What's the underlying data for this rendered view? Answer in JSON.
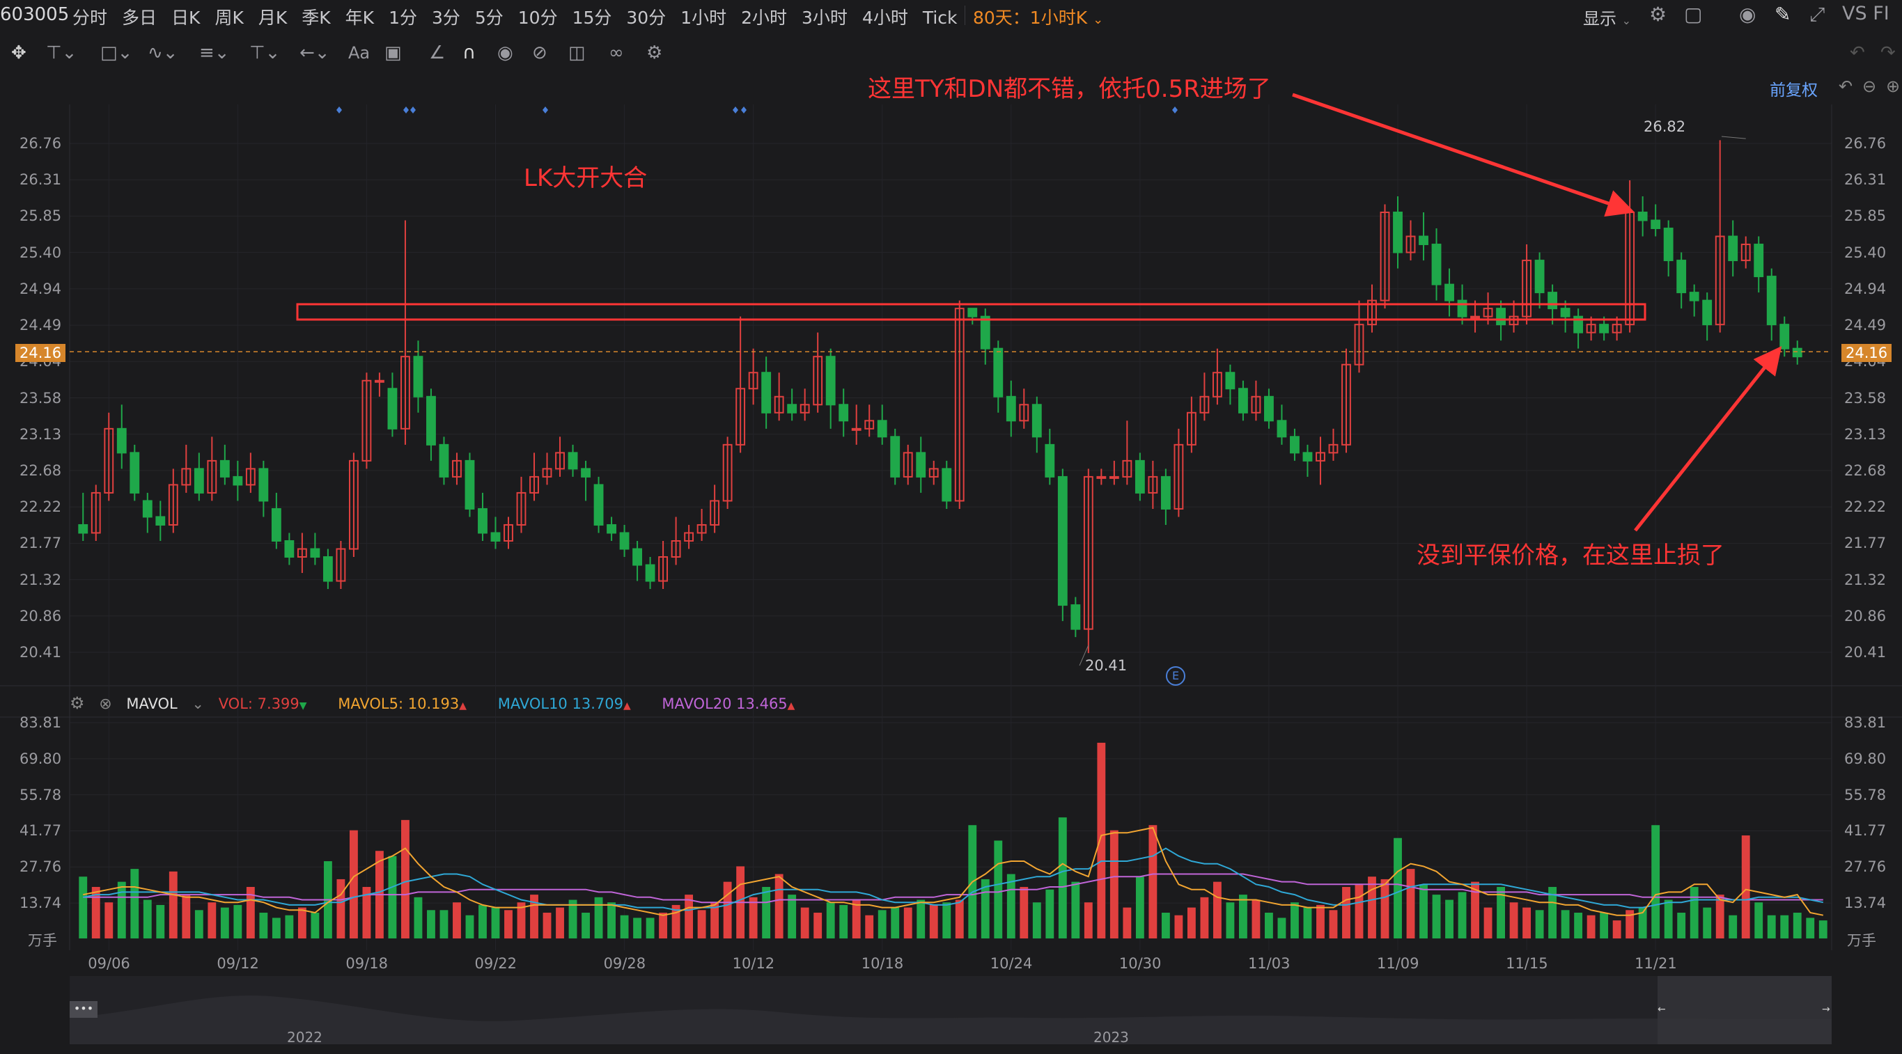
{
  "toolbar": {
    "symbol": "603005",
    "periods": [
      "分时",
      "多日",
      "日K",
      "周K",
      "月K",
      "季K",
      "年K",
      "1分",
      "3分",
      "5分",
      "10分",
      "15分",
      "30分",
      "1小时",
      "2小时",
      "3小时",
      "4小时",
      "Tick"
    ],
    "active_period": "80天：1小时K",
    "display_label": "显示",
    "right_text": "VS FI",
    "icons": [
      "settings-icon",
      "layout-icon",
      "camera-icon",
      "pencil-icon",
      "expand-icon"
    ]
  },
  "drawing_tools": [
    "crosshair-icon",
    "line-tool-icon",
    "shape-tool-icon",
    "path-tool-icon",
    "fib-tool-icon",
    "vertical-line-icon",
    "arrow-tool-icon",
    "text-tool-icon",
    "note-tool-icon",
    "ruler-icon",
    "magnet-icon",
    "eye-icon",
    "hide-icon",
    "trash-icon",
    "link-icon",
    "gear-icon"
  ],
  "adjust_label": "前复权",
  "price_axis": {
    "ticks": [
      "26.76",
      "26.31",
      "25.85",
      "25.40",
      "24.94",
      "24.49",
      "24.04",
      "23.58",
      "23.13",
      "22.68",
      "22.22",
      "21.77",
      "21.32",
      "20.86",
      "20.41"
    ],
    "current_price": "24.16",
    "high_label": "26.82",
    "low_label": "20.41"
  },
  "volume_legend": {
    "name": "MAVOL",
    "vol": "VOL: 7.399",
    "mavol5": "MAVOL5: 10.193",
    "mavol10": "MAVOL10  13.709",
    "mavol20": "MAVOL20  13.465"
  },
  "volume_axis": {
    "ticks": [
      "83.81",
      "69.80",
      "55.78",
      "41.77",
      "27.76",
      "13.74"
    ],
    "unit": "万手"
  },
  "date_axis": [
    "09/06",
    "09/12",
    "09/18",
    "09/22",
    "09/28",
    "10/12",
    "10/18",
    "10/24",
    "10/30",
    "11/03",
    "11/09",
    "11/15",
    "11/21"
  ],
  "navigator": {
    "years": [
      "2022",
      "2023"
    ]
  },
  "event_marker": "E",
  "annotations": {
    "top": "这里TY和DN都不错，依托0.5R进场了",
    "left": "LK大开大合",
    "bottom": "没到平保价格，在这里止损了"
  },
  "colors": {
    "up": "#e0403f",
    "down": "#1fa84a",
    "mavol5": "#f2a531",
    "mavol10": "#2fa8d6",
    "mavol20": "#c065d8",
    "annotation": "#ff3535",
    "current_price": "#d6862b"
  },
  "chart_data": {
    "type": "candlestick",
    "ylim": [
      20.2,
      27.0
    ],
    "bars": [
      [
        22.0,
        21.9,
        22.4,
        21.8
      ],
      [
        21.9,
        22.4,
        22.5,
        21.8
      ],
      [
        22.4,
        23.2,
        23.4,
        22.3
      ],
      [
        23.2,
        22.9,
        23.5,
        22.7
      ],
      [
        22.9,
        22.4,
        23.0,
        22.3
      ],
      [
        22.3,
        22.1,
        22.4,
        21.9
      ],
      [
        22.1,
        22.0,
        22.3,
        21.8
      ],
      [
        22.0,
        22.5,
        22.7,
        21.9
      ],
      [
        22.5,
        22.7,
        23.0,
        22.4
      ],
      [
        22.7,
        22.4,
        22.9,
        22.3
      ],
      [
        22.4,
        22.8,
        23.1,
        22.3
      ],
      [
        22.8,
        22.6,
        23.0,
        22.5
      ],
      [
        22.6,
        22.5,
        22.8,
        22.3
      ],
      [
        22.5,
        22.7,
        22.9,
        22.4
      ],
      [
        22.7,
        22.3,
        22.8,
        22.1
      ],
      [
        22.2,
        21.8,
        22.4,
        21.7
      ],
      [
        21.8,
        21.6,
        21.9,
        21.5
      ],
      [
        21.6,
        21.7,
        21.9,
        21.4
      ],
      [
        21.7,
        21.6,
        21.9,
        21.5
      ],
      [
        21.6,
        21.3,
        21.7,
        21.2
      ],
      [
        21.3,
        21.7,
        21.8,
        21.2
      ],
      [
        21.7,
        22.8,
        22.9,
        21.6
      ],
      [
        22.8,
        23.8,
        23.9,
        22.7
      ],
      [
        23.8,
        23.8,
        23.9,
        23.6
      ],
      [
        23.7,
        23.2,
        23.9,
        23.1
      ],
      [
        23.2,
        24.1,
        25.8,
        23.0
      ],
      [
        24.1,
        23.6,
        24.3,
        23.4
      ],
      [
        23.6,
        23.0,
        23.7,
        22.8
      ],
      [
        23.0,
        22.6,
        23.1,
        22.5
      ],
      [
        22.6,
        22.8,
        22.9,
        22.5
      ],
      [
        22.8,
        22.2,
        22.9,
        22.1
      ],
      [
        22.2,
        21.9,
        22.4,
        21.8
      ],
      [
        21.9,
        21.8,
        22.1,
        21.7
      ],
      [
        21.8,
        22.0,
        22.1,
        21.7
      ],
      [
        22.0,
        22.4,
        22.6,
        21.9
      ],
      [
        22.4,
        22.6,
        22.9,
        22.3
      ],
      [
        22.6,
        22.7,
        22.9,
        22.5
      ],
      [
        22.7,
        22.9,
        23.1,
        22.6
      ],
      [
        22.9,
        22.7,
        23.0,
        22.6
      ],
      [
        22.7,
        22.6,
        22.8,
        22.3
      ],
      [
        22.5,
        22.0,
        22.6,
        21.9
      ],
      [
        22.0,
        21.9,
        22.1,
        21.8
      ],
      [
        21.9,
        21.7,
        22.0,
        21.6
      ],
      [
        21.7,
        21.5,
        21.8,
        21.3
      ],
      [
        21.5,
        21.3,
        21.6,
        21.2
      ],
      [
        21.3,
        21.6,
        21.8,
        21.2
      ],
      [
        21.6,
        21.8,
        22.1,
        21.5
      ],
      [
        21.8,
        21.9,
        22.0,
        21.7
      ],
      [
        21.9,
        22.0,
        22.2,
        21.8
      ],
      [
        22.0,
        22.3,
        22.5,
        21.9
      ],
      [
        22.3,
        23.0,
        23.1,
        22.2
      ],
      [
        23.0,
        23.7,
        24.6,
        22.9
      ],
      [
        23.7,
        23.9,
        24.2,
        23.5
      ],
      [
        23.9,
        23.4,
        24.1,
        23.2
      ],
      [
        23.4,
        23.6,
        23.9,
        23.3
      ],
      [
        23.5,
        23.4,
        23.7,
        23.3
      ],
      [
        23.4,
        23.5,
        23.7,
        23.3
      ],
      [
        23.5,
        24.1,
        24.4,
        23.4
      ],
      [
        24.1,
        23.5,
        24.2,
        23.2
      ],
      [
        23.5,
        23.3,
        23.7,
        23.1
      ],
      [
        23.2,
        23.2,
        23.5,
        23.0
      ],
      [
        23.2,
        23.3,
        23.5,
        23.1
      ],
      [
        23.3,
        23.1,
        23.5,
        23.0
      ],
      [
        23.1,
        22.6,
        23.2,
        22.5
      ],
      [
        22.6,
        22.9,
        23.0,
        22.5
      ],
      [
        22.9,
        22.6,
        23.1,
        22.4
      ],
      [
        22.6,
        22.7,
        22.8,
        22.5
      ],
      [
        22.7,
        22.3,
        22.8,
        22.2
      ],
      [
        22.3,
        24.7,
        24.8,
        22.2
      ],
      [
        24.7,
        24.6,
        24.7,
        24.5
      ],
      [
        24.6,
        24.2,
        24.7,
        24.0
      ],
      [
        24.2,
        23.6,
        24.3,
        23.4
      ],
      [
        23.6,
        23.3,
        23.8,
        23.1
      ],
      [
        23.3,
        23.5,
        23.7,
        23.2
      ],
      [
        23.5,
        23.1,
        23.6,
        22.9
      ],
      [
        23.0,
        22.6,
        23.2,
        22.5
      ],
      [
        22.6,
        21.0,
        22.7,
        20.8
      ],
      [
        21.0,
        20.7,
        21.1,
        20.6
      ],
      [
        20.7,
        22.6,
        22.7,
        20.4
      ],
      [
        22.6,
        22.6,
        22.7,
        22.5
      ],
      [
        22.6,
        22.6,
        22.8,
        22.5
      ],
      [
        22.6,
        22.8,
        23.3,
        22.5
      ],
      [
        22.8,
        22.4,
        22.9,
        22.3
      ],
      [
        22.4,
        22.6,
        22.8,
        22.2
      ],
      [
        22.6,
        22.2,
        22.7,
        22.0
      ],
      [
        22.2,
        23.0,
        23.2,
        22.1
      ],
      [
        23.0,
        23.4,
        23.6,
        22.9
      ],
      [
        23.4,
        23.6,
        23.9,
        23.3
      ],
      [
        23.6,
        23.9,
        24.2,
        23.5
      ],
      [
        23.9,
        23.7,
        24.0,
        23.5
      ],
      [
        23.7,
        23.4,
        23.8,
        23.3
      ],
      [
        23.4,
        23.6,
        23.8,
        23.3
      ],
      [
        23.6,
        23.3,
        23.7,
        23.2
      ],
      [
        23.3,
        23.1,
        23.5,
        23.0
      ],
      [
        23.1,
        22.9,
        23.2,
        22.8
      ],
      [
        22.9,
        22.8,
        23.0,
        22.6
      ],
      [
        22.8,
        22.9,
        23.1,
        22.5
      ],
      [
        22.9,
        23.0,
        23.2,
        22.8
      ],
      [
        23.0,
        24.0,
        24.2,
        22.9
      ],
      [
        24.0,
        24.5,
        24.8,
        23.9
      ],
      [
        24.5,
        24.8,
        25.0,
        24.4
      ],
      [
        24.8,
        25.9,
        26.0,
        24.7
      ],
      [
        25.9,
        25.4,
        26.1,
        25.2
      ],
      [
        25.4,
        25.6,
        25.8,
        25.3
      ],
      [
        25.6,
        25.5,
        25.9,
        25.3
      ],
      [
        25.5,
        25.0,
        25.7,
        24.8
      ],
      [
        25.0,
        24.8,
        25.2,
        24.6
      ],
      [
        24.8,
        24.6,
        25.0,
        24.5
      ],
      [
        24.6,
        24.6,
        24.8,
        24.4
      ],
      [
        24.6,
        24.7,
        24.9,
        24.5
      ],
      [
        24.7,
        24.5,
        24.8,
        24.3
      ],
      [
        24.5,
        24.6,
        24.8,
        24.4
      ],
      [
        24.6,
        25.3,
        25.5,
        24.5
      ],
      [
        25.3,
        24.9,
        25.4,
        24.7
      ],
      [
        24.9,
        24.7,
        25.0,
        24.5
      ],
      [
        24.7,
        24.6,
        24.8,
        24.4
      ],
      [
        24.6,
        24.4,
        24.7,
        24.2
      ],
      [
        24.4,
        24.5,
        24.6,
        24.3
      ],
      [
        24.5,
        24.4,
        24.6,
        24.3
      ],
      [
        24.4,
        24.5,
        24.6,
        24.3
      ],
      [
        24.5,
        25.9,
        26.3,
        24.4
      ],
      [
        25.9,
        25.8,
        26.1,
        25.6
      ],
      [
        25.8,
        25.7,
        26.0,
        25.6
      ],
      [
        25.7,
        25.3,
        25.8,
        25.1
      ],
      [
        25.3,
        24.9,
        25.4,
        24.7
      ],
      [
        24.9,
        24.8,
        25.0,
        24.6
      ],
      [
        24.8,
        24.5,
        24.9,
        24.3
      ],
      [
        24.5,
        25.6,
        26.8,
        24.4
      ],
      [
        25.6,
        25.3,
        25.8,
        25.1
      ],
      [
        25.3,
        25.5,
        25.6,
        25.2
      ],
      [
        25.5,
        25.1,
        25.6,
        24.9
      ],
      [
        25.1,
        24.5,
        25.2,
        24.3
      ],
      [
        24.5,
        24.2,
        24.6,
        24.1
      ],
      [
        24.2,
        24.1,
        24.3,
        24.0
      ]
    ],
    "volume": [
      24,
      20,
      14,
      22,
      27,
      15,
      13,
      26,
      17,
      11,
      14,
      12,
      13,
      20,
      10,
      8,
      9,
      12,
      10,
      30,
      23,
      42,
      20,
      34,
      32,
      46,
      16,
      11,
      11,
      14,
      9,
      13,
      12,
      11,
      14,
      17,
      10,
      12,
      15,
      10,
      16,
      14,
      9,
      8,
      8,
      10,
      13,
      17,
      11,
      14,
      22,
      28,
      16,
      20,
      25,
      17,
      12,
      10,
      14,
      13,
      15,
      9,
      11,
      12,
      12,
      15,
      13,
      14,
      15,
      44,
      23,
      38,
      25,
      20,
      14,
      19,
      47,
      22,
      14,
      76,
      42,
      12,
      24,
      44,
      10,
      9,
      12,
      16,
      22,
      14,
      17,
      15,
      10,
      8,
      14,
      12,
      13,
      11,
      20,
      21,
      24,
      23,
      39,
      27,
      21,
      17,
      15,
      18,
      22,
      12,
      20,
      14,
      12,
      11,
      20,
      11,
      10,
      9,
      10,
      7,
      11,
      12,
      44,
      15,
      10,
      20,
      12,
      17,
      9,
      40,
      14,
      9,
      9,
      10,
      8,
      7
    ],
    "mavol5": [
      17,
      18,
      19,
      20,
      20,
      19,
      18,
      17,
      16,
      16,
      15,
      14,
      14,
      15,
      14,
      12,
      11,
      11,
      10,
      14,
      17,
      24,
      27,
      30,
      32,
      35,
      29,
      24,
      20,
      18,
      15,
      13,
      12,
      12,
      12,
      13,
      13,
      13,
      13,
      13,
      13,
      13,
      12,
      11,
      10,
      9,
      10,
      12,
      12,
      13,
      17,
      21,
      22,
      23,
      24,
      20,
      18,
      16,
      14,
      14,
      13,
      13,
      12,
      12,
      13,
      14,
      14,
      15,
      16,
      22,
      25,
      29,
      30,
      30,
      27,
      25,
      29,
      26,
      24,
      40,
      41,
      41,
      42,
      43,
      30,
      21,
      19,
      19,
      16,
      15,
      15,
      15,
      14,
      13,
      13,
      12,
      12,
      12,
      15,
      16,
      19,
      21,
      26,
      29,
      28,
      26,
      22,
      21,
      19,
      17,
      17,
      16,
      15,
      14,
      14,
      13,
      13,
      11,
      10,
      9,
      9,
      10,
      17,
      18,
      18,
      21,
      21,
      15,
      14,
      19,
      18,
      17,
      16,
      17,
      10,
      9
    ],
    "mavol10": [
      16,
      17,
      17,
      18,
      18,
      18,
      18,
      18,
      18,
      18,
      17,
      16,
      15,
      15,
      15,
      14,
      13,
      13,
      13,
      14,
      14,
      16,
      17,
      18,
      20,
      22,
      23,
      24,
      25,
      25,
      24,
      21,
      19,
      17,
      15,
      14,
      13,
      13,
      13,
      13,
      13,
      13,
      13,
      12,
      12,
      12,
      11,
      11,
      12,
      12,
      13,
      15,
      17,
      18,
      19,
      19,
      19,
      19,
      18,
      18,
      18,
      17,
      15,
      14,
      14,
      14,
      13,
      13,
      14,
      18,
      20,
      21,
      22,
      23,
      24,
      24,
      26,
      27,
      27,
      30,
      30,
      30,
      31,
      32,
      35,
      32,
      30,
      29,
      29,
      27,
      24,
      21,
      20,
      18,
      17,
      15,
      14,
      13,
      13,
      14,
      15,
      16,
      18,
      20,
      21,
      21,
      21,
      21,
      21,
      21,
      21,
      20,
      19,
      18,
      17,
      16,
      15,
      14,
      13,
      13,
      12,
      12,
      13,
      14,
      14,
      15,
      15,
      15,
      15,
      15,
      16,
      16,
      16,
      16,
      15,
      14
    ],
    "mavol20": [
      16,
      16,
      16,
      16,
      16,
      16,
      17,
      17,
      17,
      17,
      17,
      17,
      17,
      17,
      16,
      16,
      16,
      15,
      15,
      15,
      15,
      16,
      17,
      17,
      17,
      17,
      18,
      18,
      18,
      18,
      19,
      19,
      19,
      19,
      19,
      19,
      19,
      19,
      19,
      19,
      18,
      18,
      17,
      16,
      16,
      15,
      15,
      15,
      14,
      14,
      14,
      14,
      14,
      14,
      15,
      15,
      15,
      15,
      15,
      15,
      15,
      15,
      15,
      16,
      16,
      16,
      16,
      17,
      17,
      17,
      18,
      18,
      19,
      19,
      19,
      20,
      20,
      21,
      22,
      23,
      24,
      24,
      24,
      25,
      25,
      25,
      25,
      25,
      25,
      25,
      25,
      24,
      23,
      22,
      22,
      21,
      21,
      21,
      21,
      21,
      21,
      21,
      21,
      20,
      19,
      19,
      19,
      19,
      18,
      18,
      18,
      18,
      18,
      17,
      17,
      17,
      17,
      17,
      17,
      17,
      17,
      16,
      16,
      16,
      16,
      16,
      16,
      16,
      15,
      15,
      15,
      15,
      15,
      15,
      15,
      15
    ]
  }
}
